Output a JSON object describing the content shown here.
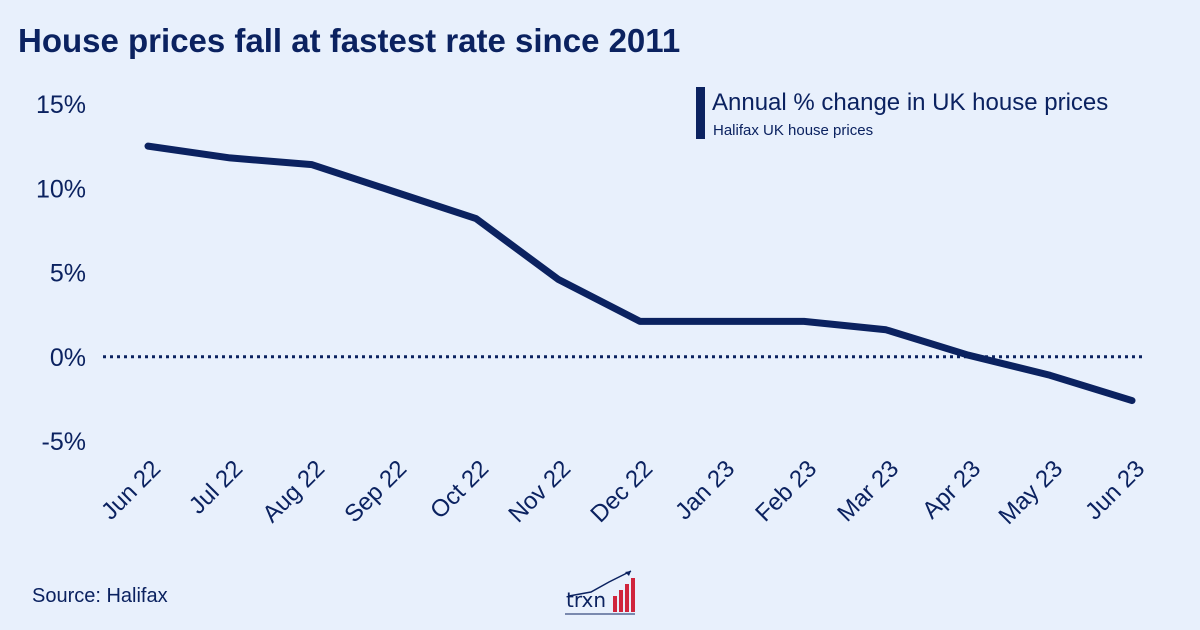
{
  "header": {
    "title": "House prices fall at fastest rate since 2011"
  },
  "legend": {
    "title": "Annual % change in UK house prices",
    "subtitle": "Halifax UK house prices"
  },
  "footer": {
    "source": "Source: Halifax",
    "logo_text": "trxn"
  },
  "chart_data": {
    "type": "line",
    "categories": [
      "Jun 22",
      "Jul 22",
      "Aug 22",
      "Sep 22",
      "Oct 22",
      "Nov 22",
      "Dec 22",
      "Jan 23",
      "Feb 23",
      "Mar 23",
      "Apr 23",
      "May 23",
      "Jun 23"
    ],
    "series": [
      {
        "name": "Annual % change in UK house prices",
        "values": [
          12.5,
          11.8,
          11.4,
          9.8,
          8.2,
          4.6,
          2.1,
          2.1,
          2.1,
          1.6,
          0.1,
          -1.1,
          -2.6
        ]
      }
    ],
    "yticks": [
      15,
      10,
      5,
      0,
      -5
    ],
    "ytick_labels": [
      "15%",
      "10%",
      "5%",
      "0%",
      "-5%"
    ],
    "ylim": [
      -5,
      15
    ],
    "zero_line": "dotted",
    "grid": false,
    "legend_position": "top-right",
    "colors": {
      "line": "#0b2260",
      "background": "#e8f0fc",
      "logo_bars": "#d0243c"
    }
  }
}
